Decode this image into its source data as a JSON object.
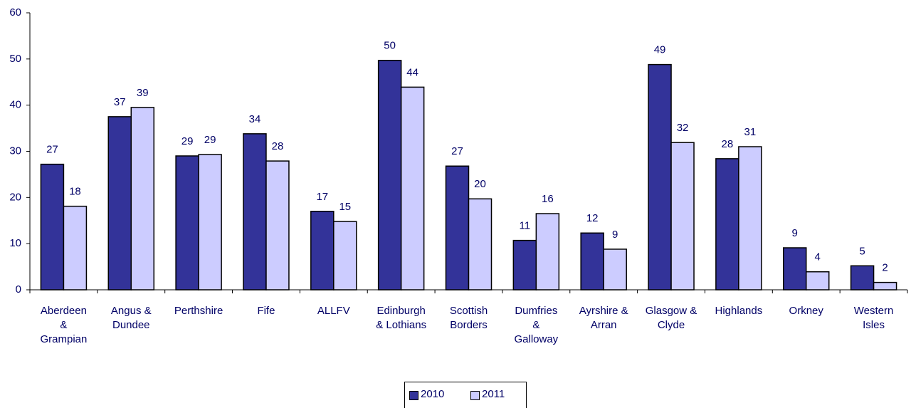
{
  "chart_data": {
    "type": "bar",
    "categories": [
      "Aberdeen & Grampian",
      "Angus & Dundee",
      "Perthshire",
      "Fife",
      "ALLFV",
      "Edinburgh & Lothians",
      "Scottish Borders",
      "Dumfries & Galloway",
      "Ayrshire & Arran",
      "Glasgow & Clyde",
      "Highlands",
      "Orkney",
      "Western Isles"
    ],
    "series": [
      {
        "name": "2010",
        "color": "#333399",
        "values": [
          27.2,
          37.5,
          29,
          33.8,
          17,
          49.7,
          26.8,
          10.7,
          12.3,
          48.8,
          28.4,
          9.1,
          5.2
        ],
        "value_labels": [
          "27",
          "37",
          "29",
          "34",
          "17",
          "50",
          "27",
          "11",
          "12",
          "49",
          "28",
          "9",
          "5"
        ]
      },
      {
        "name": "2011",
        "color": "#ccccff",
        "values": [
          18.1,
          39.5,
          29.3,
          27.9,
          14.8,
          43.9,
          19.7,
          16.5,
          8.8,
          31.9,
          31,
          3.9,
          1.6
        ],
        "value_labels": [
          "18",
          "39",
          "29",
          "28",
          "15",
          "44",
          "20",
          "16",
          "9",
          "32",
          "31",
          "4",
          "2"
        ]
      }
    ],
    "ylim": [
      0,
      60
    ],
    "yticks": [
      0,
      10,
      20,
      30,
      40,
      50,
      60
    ]
  }
}
